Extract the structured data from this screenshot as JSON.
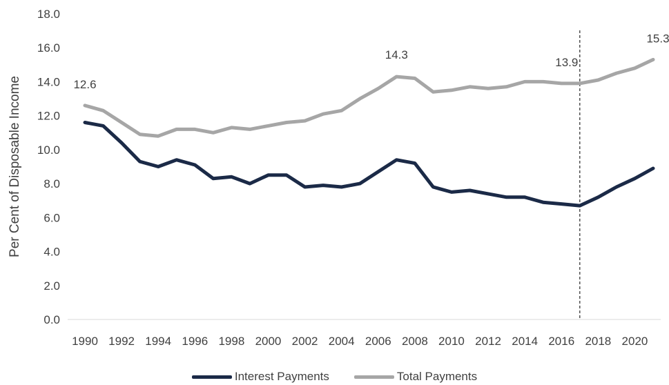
{
  "chart_data": {
    "type": "line",
    "title": "",
    "xlabel": "",
    "ylabel": "Per Cent of Disposable Income",
    "ylim": [
      0,
      18
    ],
    "yticks": [
      "0.0",
      "2.0",
      "4.0",
      "6.0",
      "8.0",
      "10.0",
      "12.0",
      "14.0",
      "16.0",
      "18.0"
    ],
    "x": [
      1990,
      1991,
      1992,
      1993,
      1994,
      1995,
      1996,
      1997,
      1998,
      1999,
      2000,
      2001,
      2002,
      2003,
      2004,
      2005,
      2006,
      2007,
      2008,
      2009,
      2010,
      2011,
      2012,
      2013,
      2014,
      2015,
      2016,
      2017,
      2018,
      2019,
      2020,
      2021
    ],
    "xtick_labels": [
      "1990",
      "1992",
      "1994",
      "1996",
      "1998",
      "2000",
      "2002",
      "2004",
      "2006",
      "2008",
      "2010",
      "2012",
      "2014",
      "2016",
      "2018",
      "2020"
    ],
    "series": [
      {
        "name": "Interest Payments",
        "color": "#1b2a47",
        "values": [
          11.6,
          11.4,
          10.4,
          9.3,
          9.0,
          9.4,
          9.1,
          8.3,
          8.4,
          8.0,
          8.5,
          8.5,
          7.8,
          7.9,
          7.8,
          8.0,
          8.7,
          9.4,
          9.2,
          7.8,
          7.5,
          7.6,
          7.4,
          7.2,
          7.2,
          6.9,
          6.8,
          6.7,
          7.2,
          7.8,
          8.3,
          8.9
        ]
      },
      {
        "name": "Total Payments",
        "color": "#a6a6a6",
        "values": [
          12.6,
          12.3,
          11.6,
          10.9,
          10.8,
          11.2,
          11.2,
          11.0,
          11.3,
          11.2,
          11.4,
          11.6,
          11.7,
          12.1,
          12.3,
          13.0,
          13.6,
          14.3,
          14.2,
          13.4,
          13.5,
          13.7,
          13.6,
          13.7,
          14.0,
          14.0,
          13.9,
          13.9,
          14.1,
          14.5,
          14.8,
          15.3
        ]
      }
    ],
    "annotations": [
      {
        "text": "12.6",
        "x": 1990,
        "y": 12.6
      },
      {
        "text": "14.3",
        "x": 2007,
        "y": 14.3
      },
      {
        "text": "13.9",
        "x": 2017,
        "y": 13.9
      },
      {
        "text": "15.3",
        "x": 2021,
        "y": 15.3
      }
    ],
    "reference_line": {
      "x": 2017,
      "style": "dashed"
    },
    "grid": false,
    "legend_position": "bottom"
  }
}
